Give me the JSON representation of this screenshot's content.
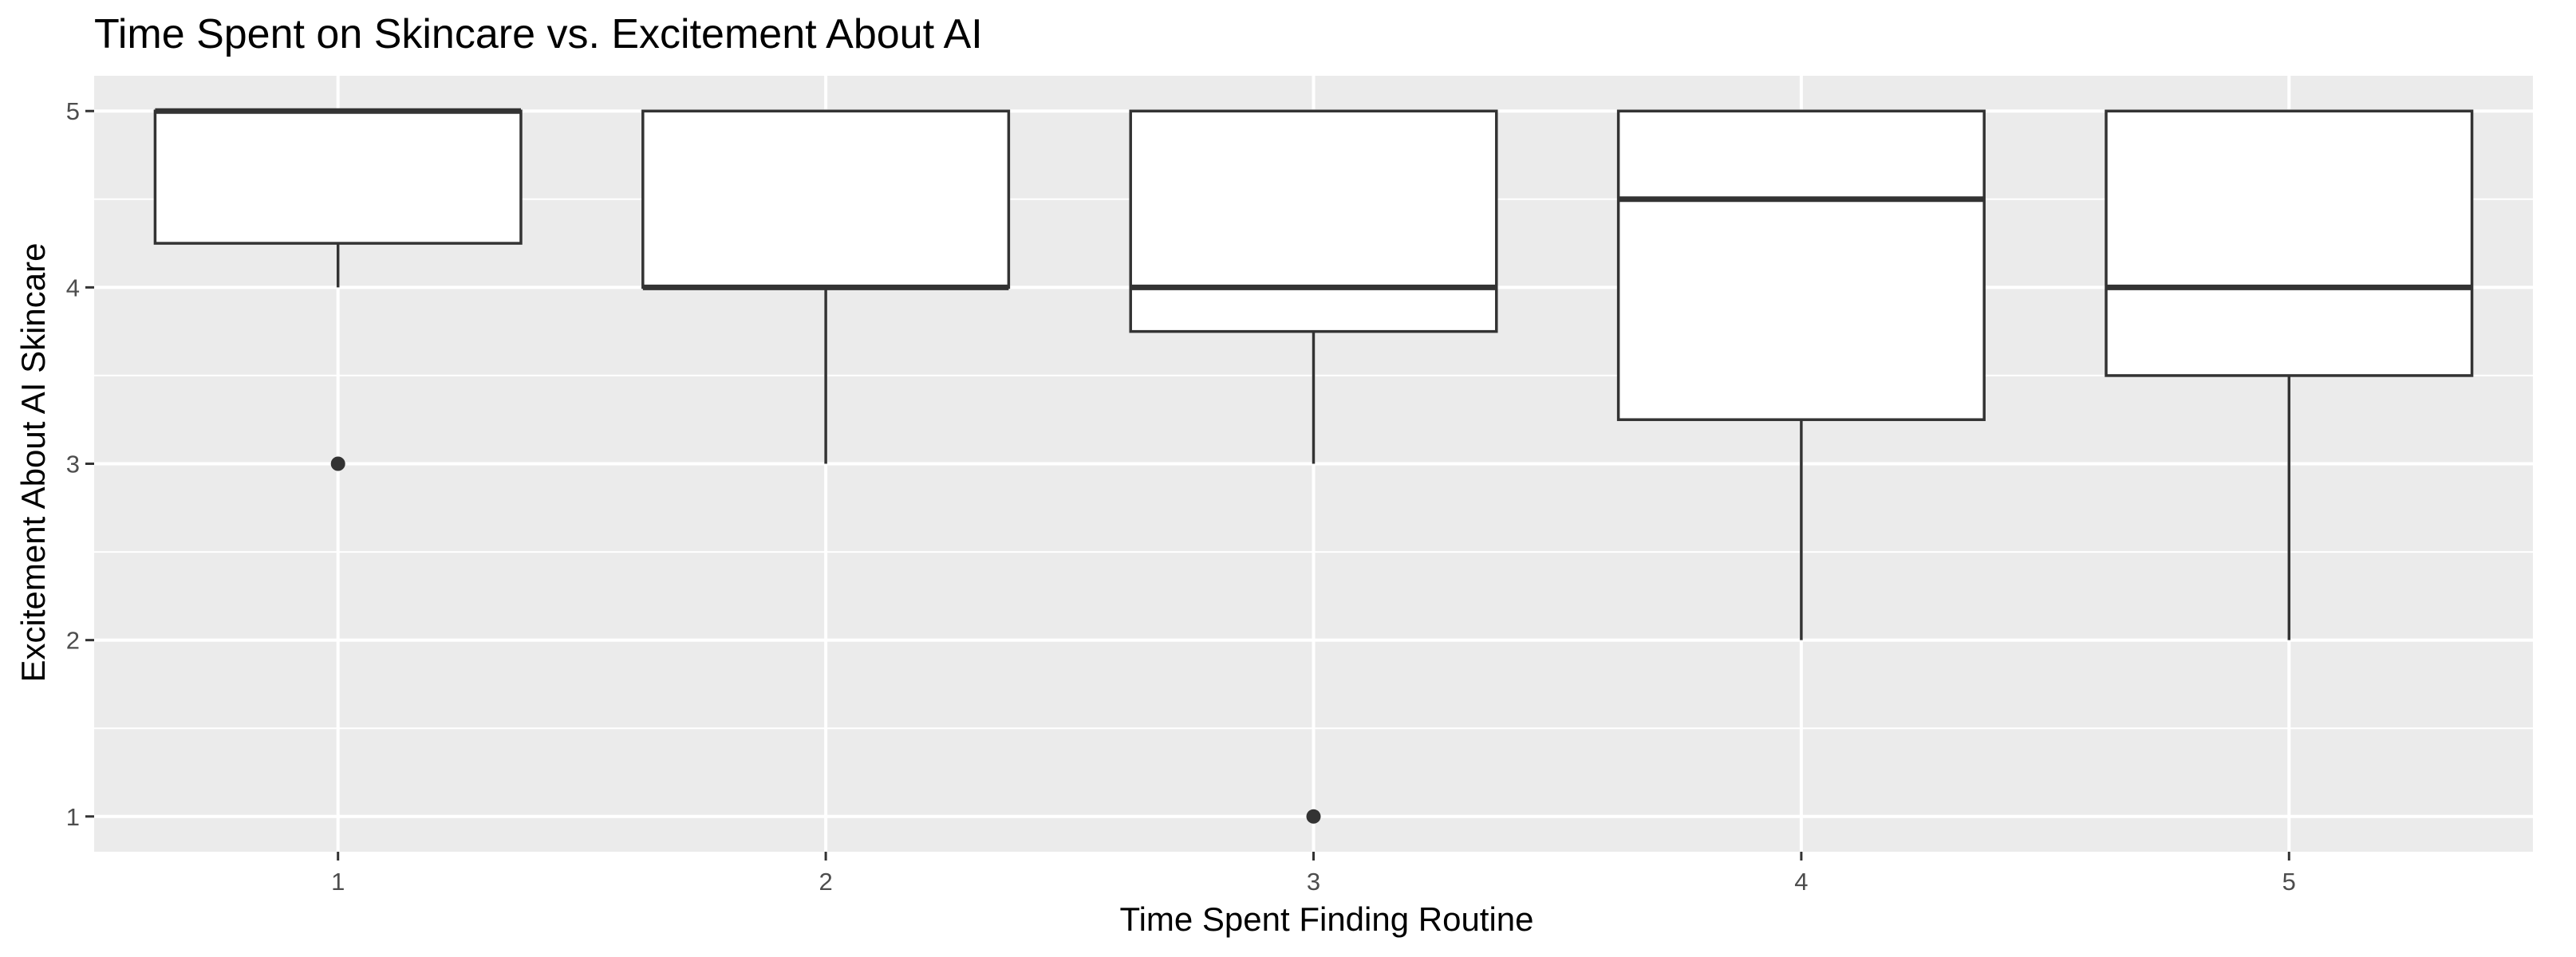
{
  "chart_data": {
    "type": "boxplot",
    "title": "Time Spent on Skincare vs. Excitement About AI",
    "xlabel": "Time Spent Finding Routine",
    "ylabel": "Excitement About AI Skincare",
    "categories": [
      "1",
      "2",
      "3",
      "4",
      "5"
    ],
    "y_ticks": [
      "1",
      "2",
      "3",
      "4",
      "5"
    ],
    "ylim": [
      0.8,
      5.2
    ],
    "grid": true,
    "background": "#ebebeb",
    "colors": {
      "panel": "#ebebeb",
      "grid": "#ffffff",
      "box_fill": "#ffffff",
      "box_stroke": "#333333",
      "tick_text": "#4d4d4d"
    },
    "boxes": [
      {
        "category": "1",
        "lower_whisker": 4.0,
        "q1": 4.25,
        "median": 5.0,
        "q3": 5.0,
        "upper_whisker": 5.0,
        "outliers": [
          3
        ]
      },
      {
        "category": "2",
        "lower_whisker": 3.0,
        "q1": 4.0,
        "median": 4.0,
        "q3": 5.0,
        "upper_whisker": 5.0,
        "outliers": []
      },
      {
        "category": "3",
        "lower_whisker": 3.0,
        "q1": 3.75,
        "median": 4.0,
        "q3": 5.0,
        "upper_whisker": 5.0,
        "outliers": [
          1
        ]
      },
      {
        "category": "4",
        "lower_whisker": 2.0,
        "q1": 3.25,
        "median": 4.5,
        "q3": 5.0,
        "upper_whisker": 5.0,
        "outliers": []
      },
      {
        "category": "5",
        "lower_whisker": 2.0,
        "q1": 3.5,
        "median": 4.0,
        "q3": 5.0,
        "upper_whisker": 5.0,
        "outliers": []
      }
    ]
  }
}
